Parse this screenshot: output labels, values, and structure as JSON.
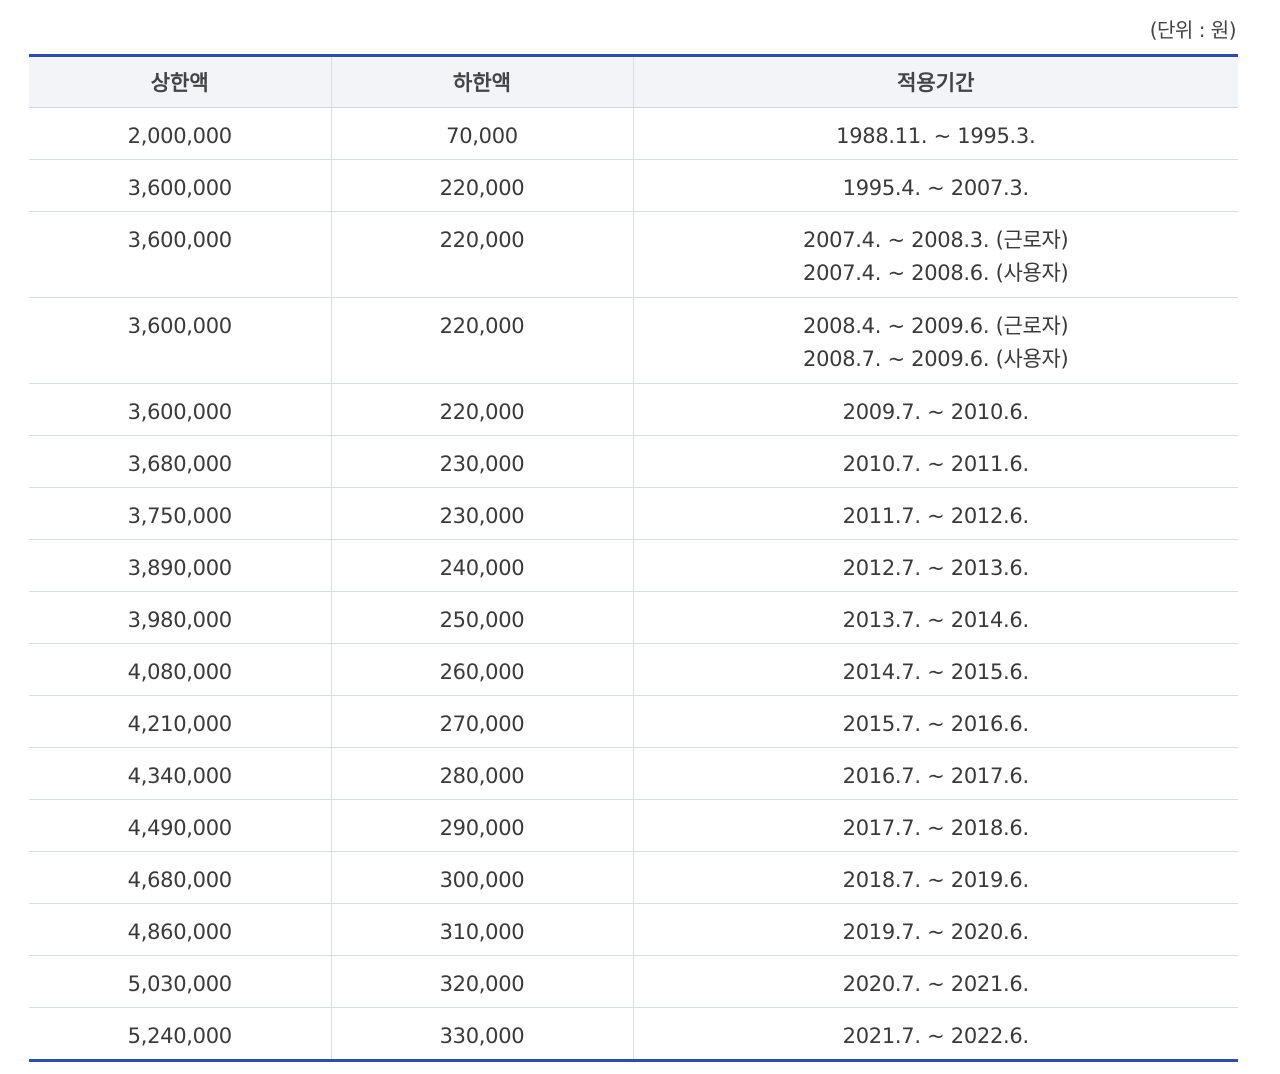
{
  "unit_note": "(단위 : 원)",
  "table": {
    "headers": [
      "상한액",
      "하한액",
      "적용기간"
    ],
    "rows": [
      {
        "upper": "2,000,000",
        "lower": "70,000",
        "period": [
          "1988.11. ~ 1995.3."
        ]
      },
      {
        "upper": "3,600,000",
        "lower": "220,000",
        "period": [
          "1995.4. ~ 2007.3."
        ]
      },
      {
        "upper": "3,600,000",
        "lower": "220,000",
        "period": [
          "2007.4. ~ 2008.3. (근로자)",
          "2007.4. ~ 2008.6. (사용자)"
        ]
      },
      {
        "upper": "3,600,000",
        "lower": "220,000",
        "period": [
          "2008.4. ~ 2009.6. (근로자)",
          "2008.7. ~ 2009.6. (사용자)"
        ]
      },
      {
        "upper": "3,600,000",
        "lower": "220,000",
        "period": [
          "2009.7. ~ 2010.6."
        ]
      },
      {
        "upper": "3,680,000",
        "lower": "230,000",
        "period": [
          "2010.7. ~ 2011.6."
        ]
      },
      {
        "upper": "3,750,000",
        "lower": "230,000",
        "period": [
          "2011.7. ~ 2012.6."
        ]
      },
      {
        "upper": "3,890,000",
        "lower": "240,000",
        "period": [
          "2012.7. ~ 2013.6."
        ]
      },
      {
        "upper": "3,980,000",
        "lower": "250,000",
        "period": [
          "2013.7. ~ 2014.6."
        ]
      },
      {
        "upper": "4,080,000",
        "lower": "260,000",
        "period": [
          "2014.7. ~ 2015.6."
        ]
      },
      {
        "upper": "4,210,000",
        "lower": "270,000",
        "period": [
          "2015.7. ~ 2016.6."
        ]
      },
      {
        "upper": "4,340,000",
        "lower": "280,000",
        "period": [
          "2016.7. ~ 2017.6."
        ]
      },
      {
        "upper": "4,490,000",
        "lower": "290,000",
        "period": [
          "2017.7. ~ 2018.6."
        ]
      },
      {
        "upper": "4,680,000",
        "lower": "300,000",
        "period": [
          "2018.7. ~ 2019.6."
        ]
      },
      {
        "upper": "4,860,000",
        "lower": "310,000",
        "period": [
          "2019.7. ~ 2020.6."
        ]
      },
      {
        "upper": "5,030,000",
        "lower": "320,000",
        "period": [
          "2020.7. ~ 2021.6."
        ]
      },
      {
        "upper": "5,240,000",
        "lower": "330,000",
        "period": [
          "2021.7. ~ 2022.6."
        ]
      }
    ]
  },
  "colors": {
    "accent_border": "#2e4f9e",
    "header_bg": "#f2f4f8",
    "grid_line": "#d7dce5"
  }
}
